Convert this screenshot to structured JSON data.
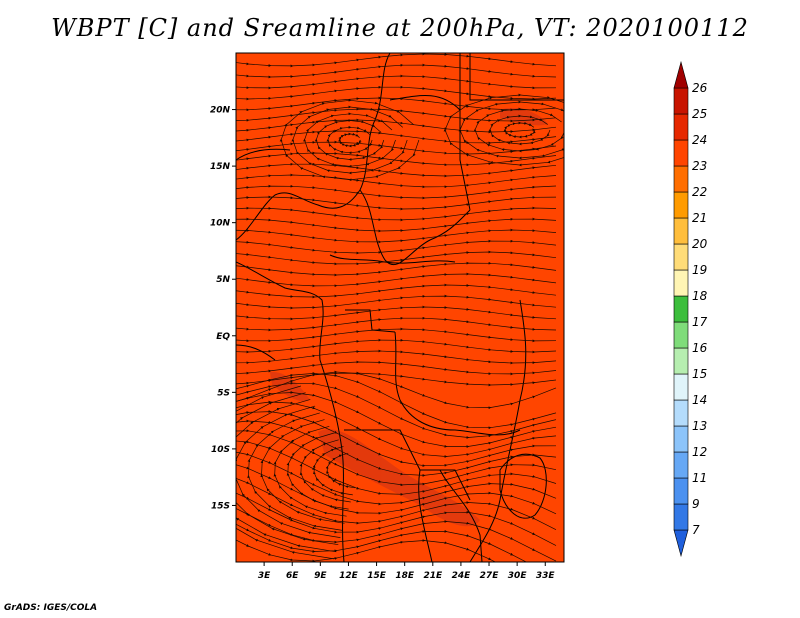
{
  "title": "WBPT [C] and Sreamline at 200hPa, VT: 2020100112",
  "credit": "GrADS: IGES/COLA",
  "map": {
    "lon_range": [
      0,
      35
    ],
    "lat_range": [
      -20,
      25
    ],
    "background_color": "#ff4500",
    "streamline_color": "#1a0a00",
    "boundary_color": "#000000",
    "lat_ticks": [
      "20N",
      "15N",
      "10N",
      "5N",
      "EQ",
      "5S",
      "10S",
      "15S"
    ],
    "lat_values": [
      20,
      15,
      10,
      5,
      0,
      -5,
      -10,
      -15
    ],
    "lon_ticks": [
      "3E",
      "6E",
      "9E",
      "12E",
      "15E",
      "18E",
      "21E",
      "24E",
      "27E",
      "30E",
      "33E"
    ],
    "lon_values": [
      3,
      6,
      9,
      12,
      15,
      18,
      21,
      24,
      27,
      30,
      33
    ]
  },
  "colorbar": {
    "levels": [
      "7",
      "9",
      "11",
      "12",
      "13",
      "14",
      "15",
      "16",
      "17",
      "18",
      "19",
      "20",
      "21",
      "22",
      "23",
      "24",
      "25",
      "26"
    ],
    "colors": [
      "#1f5fdc",
      "#3278e6",
      "#4b91f0",
      "#66a8f5",
      "#8cc4fa",
      "#b4dcfc",
      "#e0f4fa",
      "#b6eeb0",
      "#7fdc7a",
      "#3cbe3c",
      "#fff5b4",
      "#ffdc78",
      "#ffbe3c",
      "#ff9b00",
      "#ff6e00",
      "#ff4500",
      "#e62800",
      "#c81400",
      "#a00000"
    ]
  }
}
